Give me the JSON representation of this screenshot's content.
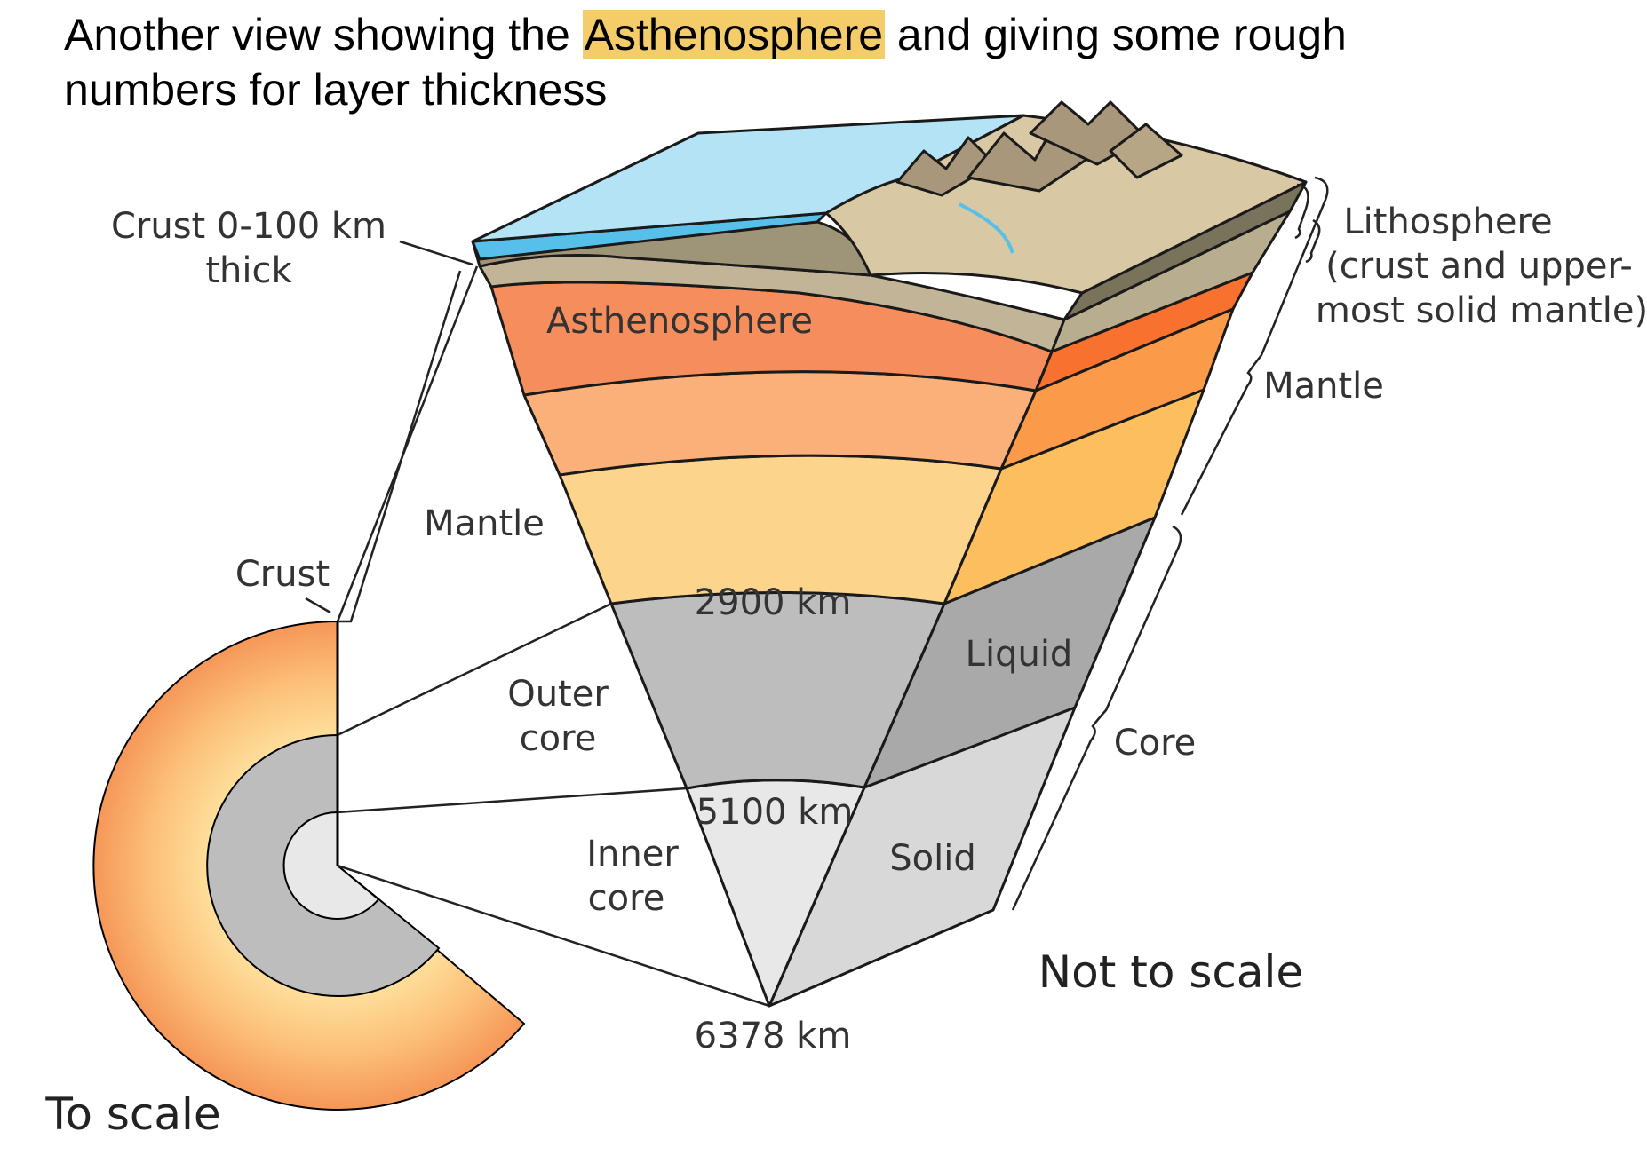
{
  "title": {
    "before": "Another view showing the ",
    "highlight": "Asthenosphere",
    "after": " and giving some rough numbers for layer thickness"
  },
  "labels": {
    "crust_thickness_line1": "Crust 0-100 km",
    "crust_thickness_line2": "thick",
    "asthenosphere": "Asthenosphere",
    "mantle_left": "Mantle",
    "crust_left": "Crust",
    "depth_2900": "2900 km",
    "outer_core_line1": "Outer",
    "outer_core_line2": "core",
    "depth_5100": "5100 km",
    "inner_core_line1": "Inner",
    "inner_core_line2": "core",
    "depth_6378": "6378 km",
    "liquid": "Liquid",
    "solid": "Solid",
    "lithosphere_line1": "Lithosphere",
    "lithosphere_line2": "(crust and upper-",
    "lithosphere_line3": "most solid mantle)",
    "mantle_right": "Mantle",
    "core_right": "Core",
    "not_to_scale": "Not to scale",
    "to_scale": "To scale"
  },
  "colors": {
    "highlight": "#f4cd6a",
    "ocean": "#b3e3f4",
    "ocean_deep": "#56c0ea",
    "land_top": "#d9c8a4",
    "land_side": "#9e9478",
    "crust": "#c2b597",
    "asthenosphere": "#f58e5c",
    "upper_mantle": "#fbb079",
    "lower_mantle": "#fdd48b",
    "outer_core": "#bdbdbd",
    "inner_core": "#e8e8e8"
  }
}
